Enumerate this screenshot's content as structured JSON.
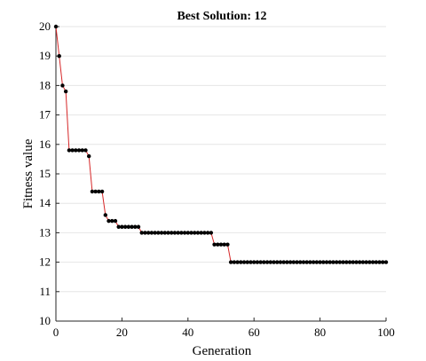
{
  "chart_data": {
    "type": "line",
    "title": "Best Solution: 12",
    "xlabel": "Generation",
    "ylabel": "Fitness value",
    "xlim": [
      0,
      100
    ],
    "ylim": [
      10,
      20
    ],
    "xticks": [
      0,
      20,
      40,
      60,
      80,
      100
    ],
    "yticks": [
      10,
      11,
      12,
      13,
      14,
      15,
      16,
      17,
      18,
      19,
      20
    ],
    "grid": true,
    "colors": {
      "line": "#d62728",
      "marker": "#000000",
      "grid": "#e6e6e6",
      "axis": "#262626"
    },
    "series": [
      {
        "x": [
          0,
          1,
          2,
          3,
          4,
          5,
          6,
          7,
          8,
          9,
          10,
          11,
          12,
          13,
          14,
          15,
          16,
          17,
          18,
          19,
          20,
          21,
          22,
          23,
          24,
          25,
          26,
          27,
          28,
          29,
          30,
          31,
          32,
          33,
          34,
          35,
          36,
          37,
          38,
          39,
          40,
          41,
          42,
          43,
          44,
          45,
          46,
          47,
          48,
          49,
          50,
          51,
          52,
          53,
          54,
          55,
          56,
          57,
          58,
          59,
          60,
          61,
          62,
          63,
          64,
          65,
          66,
          67,
          68,
          69,
          70,
          71,
          72,
          73,
          74,
          75,
          76,
          77,
          78,
          79,
          80,
          81,
          82,
          83,
          84,
          85,
          86,
          87,
          88,
          89,
          90,
          91,
          92,
          93,
          94,
          95,
          96,
          97,
          98,
          99,
          100
        ],
        "y": [
          20,
          19,
          18,
          17.8,
          15.8,
          15.8,
          15.8,
          15.8,
          15.8,
          15.8,
          15.6,
          14.4,
          14.4,
          14.4,
          14.4,
          13.6,
          13.4,
          13.4,
          13.4,
          13.2,
          13.2,
          13.2,
          13.2,
          13.2,
          13.2,
          13.2,
          13,
          13,
          13,
          13,
          13,
          13,
          13,
          13,
          13,
          13,
          13,
          13,
          13,
          13,
          13,
          13,
          13,
          13,
          13,
          13,
          13,
          13,
          12.6,
          12.6,
          12.6,
          12.6,
          12.6,
          12,
          12,
          12,
          12,
          12,
          12,
          12,
          12,
          12,
          12,
          12,
          12,
          12,
          12,
          12,
          12,
          12,
          12,
          12,
          12,
          12,
          12,
          12,
          12,
          12,
          12,
          12,
          12,
          12,
          12,
          12,
          12,
          12,
          12,
          12,
          12,
          12,
          12,
          12,
          12,
          12,
          12,
          12,
          12,
          12,
          12,
          12,
          12
        ]
      }
    ]
  }
}
